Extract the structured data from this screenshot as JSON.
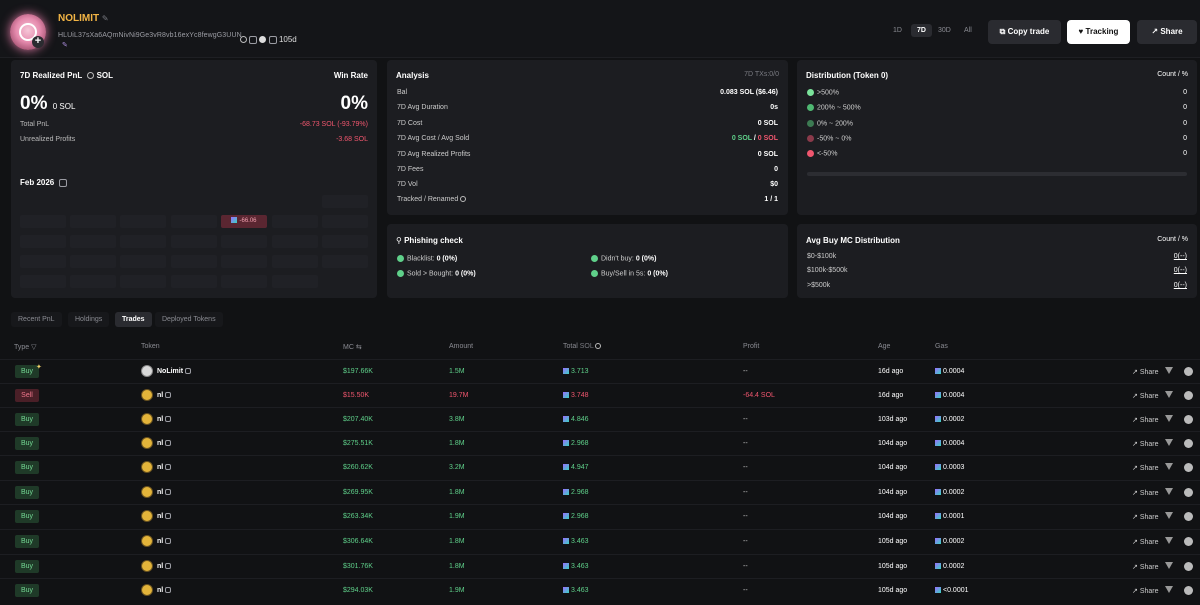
{
  "header": {
    "name": "NOLIMIT",
    "address": "HLUiL37sXa6AQmNivNi9Ge3vR8vb16exYc8fewgG3UUN",
    "age": "105d",
    "timeframes": [
      "1D",
      "7D",
      "30D",
      "All"
    ],
    "active_timeframe": "7D",
    "copy_trade": "Copy trade",
    "tracking": "Tracking",
    "share": "Share"
  },
  "pnl": {
    "title": "7D Realized PnL",
    "unit": "SOL",
    "win_rate_label": "Win Rate",
    "pnl_pct": "0%",
    "pnl_sol": "0 SOL",
    "win_rate": "0%",
    "total_label": "Total PnL",
    "total_value": "-68.73 SOL (-93.79%)",
    "unrealized_label": "Unrealized Profits",
    "unrealized_value": "-3.68 SOL",
    "month": "Feb 2026",
    "cal_value": "-66.06"
  },
  "analysis": {
    "title": "Analysis",
    "txs": "7D TXs:0/0",
    "rows": [
      {
        "label": "Bal",
        "value": "0.083 SOL ($6.46)"
      },
      {
        "label": "7D Avg Duration",
        "value": "0s"
      },
      {
        "label": "7D Cost",
        "value": "0 SOL"
      },
      {
        "label": "7D Avg Cost / Avg Sold",
        "value_a": "0 SOL",
        "sep": " / ",
        "value_b": "0 SOL"
      },
      {
        "label": "7D Avg Realized Profits",
        "value": "0 SOL"
      },
      {
        "label": "7D Fees",
        "value": "0"
      },
      {
        "label": "7D Vol",
        "value": "$0"
      },
      {
        "label": "Tracked / Renamed",
        "value": "1 / 1"
      }
    ]
  },
  "distribution": {
    "title": "Distribution (Token 0)",
    "header": "Count / %",
    "rows": [
      {
        "label": ">500%",
        "value": "0",
        "color": "#7be39b"
      },
      {
        "label": "200% ~ 500%",
        "value": "0",
        "color": "#4fb872"
      },
      {
        "label": "0% ~ 200%",
        "value": "0",
        "color": "#3c7a52"
      },
      {
        "label": "-50% ~ 0%",
        "value": "0",
        "color": "#8a3a4a"
      },
      {
        "label": "<-50%",
        "value": "0",
        "color": "#f0566e"
      }
    ]
  },
  "phishing": {
    "title": "Phishing check",
    "items": [
      {
        "label": "Blacklist:",
        "value": "0 (0%)"
      },
      {
        "label": "Didn't buy:",
        "value": "0 (0%)"
      },
      {
        "label": "Sold > Bought:",
        "value": "0 (0%)"
      },
      {
        "label": "Buy/Sell in 5s:",
        "value": "0 (0%)"
      }
    ]
  },
  "avgbuy": {
    "title": "Avg Buy MC Distribution",
    "header": "Count / %",
    "rows": [
      {
        "label": "$0-$100k",
        "value": "0(--)"
      },
      {
        "label": "$100k-$500k",
        "value": "0(--)"
      },
      {
        "label": ">$500k",
        "value": "0(--)"
      }
    ]
  },
  "tabs": [
    "Recent PnL",
    "Holdings",
    "Trades",
    "Deployed Tokens"
  ],
  "active_tab": "Trades",
  "table": {
    "headers": {
      "type": "Type",
      "token": "Token",
      "mc": "MC",
      "amount": "Amount",
      "total": "Total",
      "total_unit": "SOL",
      "profit": "Profit",
      "age": "Age",
      "gas": "Gas"
    },
    "share_label": "Share",
    "rows": [
      {
        "type": "Buy",
        "token": "NoLimit",
        "mc": "$197.66K",
        "amount": "1.5M",
        "total": "3.713",
        "profit": "--",
        "age": "16d ago",
        "gas": "0.0004"
      },
      {
        "type": "Sell",
        "token": "nl",
        "mc": "$15.50K",
        "amount": "19.7M",
        "total": "3.748",
        "profit": "-64.4 SOL",
        "age": "16d ago",
        "gas": "0.0004"
      },
      {
        "type": "Buy",
        "token": "nl",
        "mc": "$207.40K",
        "amount": "3.8M",
        "total": "4.846",
        "profit": "--",
        "age": "103d ago",
        "gas": "0.0002"
      },
      {
        "type": "Buy",
        "token": "nl",
        "mc": "$275.51K",
        "amount": "1.8M",
        "total": "2.968",
        "profit": "--",
        "age": "104d ago",
        "gas": "0.0004"
      },
      {
        "type": "Buy",
        "token": "nl",
        "mc": "$260.62K",
        "amount": "3.2M",
        "total": "4.947",
        "profit": "--",
        "age": "104d ago",
        "gas": "0.0003"
      },
      {
        "type": "Buy",
        "token": "nl",
        "mc": "$269.95K",
        "amount": "1.8M",
        "total": "2.968",
        "profit": "--",
        "age": "104d ago",
        "gas": "0.0002"
      },
      {
        "type": "Buy",
        "token": "nl",
        "mc": "$263.34K",
        "amount": "1.9M",
        "total": "2.968",
        "profit": "--",
        "age": "104d ago",
        "gas": "0.0001"
      },
      {
        "type": "Buy",
        "token": "nl",
        "mc": "$306.64K",
        "amount": "1.8M",
        "total": "3.463",
        "profit": "--",
        "age": "105d ago",
        "gas": "0.0002"
      },
      {
        "type": "Buy",
        "token": "nl",
        "mc": "$301.76K",
        "amount": "1.8M",
        "total": "3.463",
        "profit": "--",
        "age": "105d ago",
        "gas": "0.0002"
      },
      {
        "type": "Buy",
        "token": "nl",
        "mc": "$294.03K",
        "amount": "1.9M",
        "total": "3.463",
        "profit": "--",
        "age": "105d ago",
        "gas": "<0.0001"
      }
    ]
  }
}
